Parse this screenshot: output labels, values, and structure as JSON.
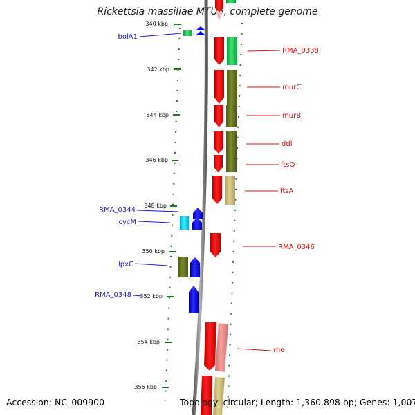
{
  "title": "Rickettsia massiliae MTU5, complete genome",
  "footer": {
    "accession": "Accession: NC_009900",
    "topology": "Topology: circular; Length: 1,360,898 bp; Genes: 1,007"
  },
  "ticks": [
    "340 kbp",
    "342 kbp",
    "344 kbp",
    "346 kbp",
    "348 kbp",
    "350 kbp",
    "352 kbp",
    "354 kbp",
    "356 kbp"
  ],
  "gene_labels": {
    "left": [
      "bolA1",
      "RMA_0344",
      "cycM",
      "lpxC",
      "RMA_0348"
    ],
    "right": [
      "RMA_0338",
      "murC",
      "murB",
      "ddl",
      "ftsQ",
      "ftsA",
      "RMA_0346",
      "rne"
    ]
  },
  "colors": {
    "forward_cds": "#e00000",
    "reverse_cds": "#0000e6",
    "tick_dots": "#1a7a1a",
    "backbone": "#808080",
    "label_blue": "#1a1adf",
    "label_red": "#d11111"
  }
}
